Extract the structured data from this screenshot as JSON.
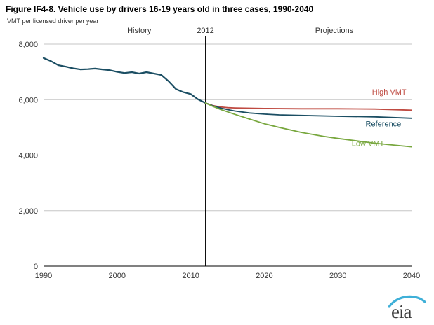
{
  "title": "Figure IF4-8. Vehicle use by drivers 16-19 years old in three cases, 1990-2040",
  "subtitle": "VMT per licensed driver  per year",
  "logo_text": "eia",
  "colors": {
    "grid": "#c6c6c6",
    "axis": "#000000",
    "divider": "#000000",
    "history": "#1b4e63",
    "high": "#bf4a41",
    "reference": "#1b4e63",
    "low": "#78a73e",
    "logo_swoosh": "#3fb0d8",
    "logo_text": "#3d3d3d"
  },
  "chart_data": {
    "type": "line",
    "title": "Figure IF4-8. Vehicle use by drivers 16-19 years old in three cases, 1990-2040",
    "ylabel": "VMT per licensed driver per year",
    "xlabel": "",
    "xlim": [
      1990,
      2040
    ],
    "ylim": [
      0,
      8000
    ],
    "grid": true,
    "divider_x": 2012,
    "xticks": [
      {
        "value": 1990,
        "label": "1990"
      },
      {
        "value": 2000,
        "label": "2000"
      },
      {
        "value": 2010,
        "label": "2010"
      },
      {
        "value": 2020,
        "label": "2020"
      },
      {
        "value": 2030,
        "label": "2030"
      },
      {
        "value": 2040,
        "label": "2040"
      }
    ],
    "yticks": [
      {
        "value": 0,
        "label": "0"
      },
      {
        "value": 2000,
        "label": "2,000"
      },
      {
        "value": 4000,
        "label": "4,000"
      },
      {
        "value": 6000,
        "label": "6,000"
      },
      {
        "value": 8000,
        "label": "8,000"
      }
    ],
    "top_labels": [
      {
        "id": "history",
        "text": "History",
        "x": 2003
      },
      {
        "id": "divider-year",
        "text": "2012",
        "x": 2012
      },
      {
        "id": "projections",
        "text": "Projections",
        "x": 2029.5
      }
    ],
    "series": [
      {
        "id": "history",
        "name": "History",
        "color": "#1b4e63",
        "width": 2.2,
        "x": [
          1990,
          1991,
          1992,
          1993,
          1994,
          1995,
          1996,
          1997,
          1998,
          1999,
          2000,
          2001,
          2002,
          2003,
          2004,
          2005,
          2006,
          2007,
          2008,
          2009,
          2010,
          2011,
          2012
        ],
        "y": [
          7500,
          7390,
          7240,
          7190,
          7130,
          7090,
          7100,
          7120,
          7090,
          7060,
          7000,
          6960,
          6990,
          6940,
          6990,
          6940,
          6890,
          6660,
          6380,
          6270,
          6200,
          6010,
          5880
        ]
      },
      {
        "id": "high-vmt",
        "name": "High VMT",
        "color": "#bf4a41",
        "width": 1.8,
        "x": [
          2012,
          2013,
          2014,
          2015,
          2016,
          2018,
          2020,
          2025,
          2030,
          2035,
          2040
        ],
        "y": [
          5880,
          5790,
          5740,
          5710,
          5700,
          5690,
          5680,
          5670,
          5670,
          5660,
          5620
        ]
      },
      {
        "id": "reference",
        "name": "Reference",
        "color": "#1b4e63",
        "width": 1.8,
        "x": [
          2012,
          2013,
          2014,
          2015,
          2016,
          2018,
          2020,
          2022,
          2025,
          2030,
          2035,
          2040
        ],
        "y": [
          5880,
          5780,
          5700,
          5640,
          5590,
          5520,
          5480,
          5450,
          5430,
          5400,
          5380,
          5330
        ]
      },
      {
        "id": "low-vmt",
        "name": "Low VMT",
        "color": "#78a73e",
        "width": 1.8,
        "x": [
          2012,
          2013,
          2014,
          2015,
          2016,
          2018,
          2020,
          2022,
          2025,
          2028,
          2030,
          2035,
          2040
        ],
        "y": [
          5880,
          5760,
          5650,
          5560,
          5470,
          5300,
          5130,
          5000,
          4820,
          4680,
          4600,
          4430,
          4300
        ]
      }
    ],
    "series_labels": [
      {
        "id": "high-vmt-label",
        "text": "High VMT",
        "x": 2039.3,
        "y": 6280,
        "color": "#bf4a41"
      },
      {
        "id": "reference-label",
        "text": "Reference",
        "x": 2038.6,
        "y": 5140,
        "color": "#1b4e63"
      },
      {
        "id": "low-vmt-label",
        "text": "Low VMT",
        "x": 2036.3,
        "y": 4430,
        "color": "#78a73e"
      }
    ]
  }
}
